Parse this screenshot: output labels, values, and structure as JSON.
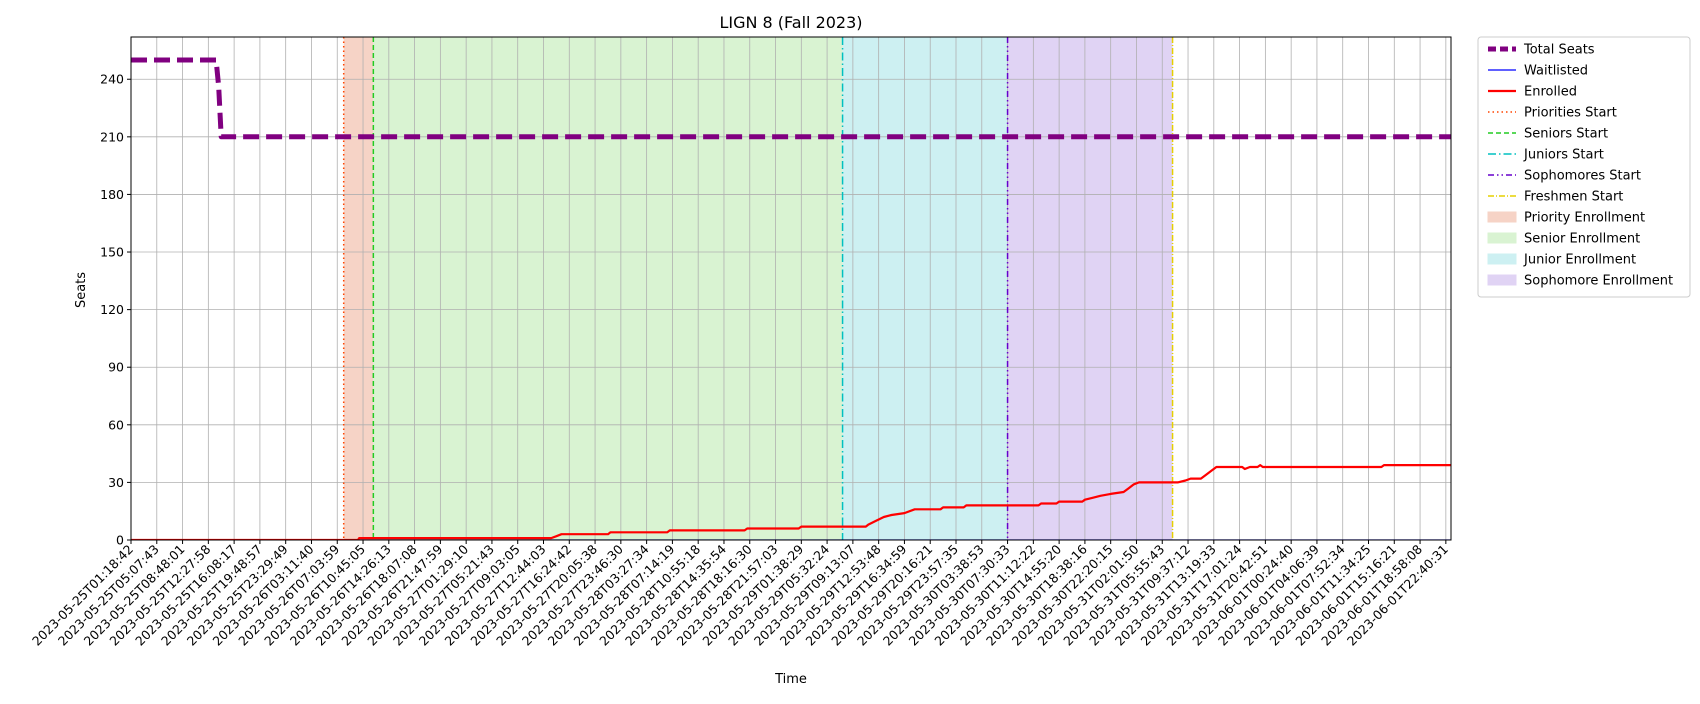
{
  "chart_data": {
    "type": "line",
    "title": "LIGN 8 (Fall 2023)",
    "xlabel": "Time",
    "ylabel": "Seats",
    "ylim": [
      0,
      262
    ],
    "yticks": [
      0,
      30,
      60,
      90,
      120,
      150,
      180,
      210,
      240
    ],
    "grid": true,
    "legend_position": "outside-right",
    "x_tick_labels": [
      "2023-05-25T01:18:42",
      "2023-05-25T05:07:43",
      "2023-05-25T08:48:01",
      "2023-05-25T12:27:58",
      "2023-05-25T16:08:17",
      "2023-05-25T19:48:57",
      "2023-05-25T23:29:49",
      "2023-05-26T03:11:40",
      "2023-05-26T07:03:59",
      "2023-05-26T10:45:05",
      "2023-05-26T14:26:13",
      "2023-05-26T18:07:08",
      "2023-05-26T21:47:59",
      "2023-05-27T01:29:10",
      "2023-05-27T05:21:43",
      "2023-05-27T09:03:05",
      "2023-05-27T12:44:03",
      "2023-05-27T16:24:42",
      "2023-05-27T20:05:38",
      "2023-05-27T23:46:30",
      "2023-05-28T03:27:34",
      "2023-05-28T07:14:19",
      "2023-05-28T10:55:18",
      "2023-05-28T14:35:54",
      "2023-05-28T18:16:30",
      "2023-05-28T21:57:03",
      "2023-05-29T01:38:29",
      "2023-05-29T05:32:24",
      "2023-05-29T09:13:07",
      "2023-05-29T12:53:48",
      "2023-05-29T16:34:59",
      "2023-05-29T20:16:21",
      "2023-05-29T23:57:35",
      "2023-05-30T03:38:53",
      "2023-05-30T07:30:33",
      "2023-05-30T11:12:22",
      "2023-05-30T14:55:20",
      "2023-05-30T18:38:16",
      "2023-05-30T22:20:15",
      "2023-05-31T02:01:50",
      "2023-05-31T05:55:43",
      "2023-05-31T09:37:12",
      "2023-05-31T13:19:33",
      "2023-05-31T17:01:24",
      "2023-05-31T20:42:51",
      "2023-06-01T00:24:40",
      "2023-06-01T04:06:39",
      "2023-06-01T07:52:34",
      "2023-06-01T11:34:25",
      "2023-06-01T15:16:21",
      "2023-06-01T18:58:08",
      "2023-06-01T22:40:31"
    ],
    "x_range": [
      0,
      51.2
    ],
    "series": [
      {
        "name": "Total Seats",
        "color": "#800080",
        "style": "dashed-thick",
        "points": [
          [
            0,
            250
          ],
          [
            3.3,
            250
          ],
          [
            3.4,
            236
          ],
          [
            3.5,
            210
          ],
          [
            51.2,
            210
          ]
        ]
      },
      {
        "name": "Waitlisted",
        "color": "#0000ff",
        "style": "solid",
        "points": [
          [
            0,
            0
          ],
          [
            51.2,
            0
          ]
        ]
      },
      {
        "name": "Enrolled",
        "color": "#ff0000",
        "style": "solid",
        "points": [
          [
            0,
            0
          ],
          [
            8.8,
            0
          ],
          [
            8.85,
            1
          ],
          [
            16.3,
            1
          ],
          [
            16.5,
            2
          ],
          [
            16.7,
            3
          ],
          [
            18.5,
            3
          ],
          [
            18.6,
            4
          ],
          [
            19.5,
            4
          ],
          [
            19.6,
            4
          ],
          [
            20.8,
            4
          ],
          [
            20.9,
            5
          ],
          [
            23.8,
            5
          ],
          [
            23.9,
            6
          ],
          [
            25.9,
            6
          ],
          [
            26.0,
            7
          ],
          [
            28.5,
            7
          ],
          [
            28.6,
            8
          ],
          [
            28.9,
            10
          ],
          [
            29.2,
            12
          ],
          [
            29.5,
            13
          ],
          [
            30.0,
            14
          ],
          [
            30.4,
            16
          ],
          [
            31.4,
            16
          ],
          [
            31.5,
            17
          ],
          [
            32.3,
            17
          ],
          [
            32.4,
            18
          ],
          [
            35.2,
            18
          ],
          [
            35.3,
            19
          ],
          [
            35.9,
            19
          ],
          [
            36.0,
            20
          ],
          [
            36.9,
            20
          ],
          [
            37.0,
            21
          ],
          [
            37.3,
            22
          ],
          [
            37.6,
            23
          ],
          [
            38.0,
            24
          ],
          [
            38.5,
            25
          ],
          [
            38.7,
            27
          ],
          [
            38.9,
            29
          ],
          [
            39.1,
            30
          ],
          [
            40.6,
            30
          ],
          [
            40.9,
            31
          ],
          [
            41.1,
            32
          ],
          [
            41.5,
            32
          ],
          [
            41.7,
            34
          ],
          [
            41.9,
            36
          ],
          [
            42.1,
            38
          ],
          [
            43.1,
            38
          ],
          [
            43.2,
            37
          ],
          [
            43.4,
            38
          ],
          [
            43.7,
            38
          ],
          [
            43.8,
            39
          ],
          [
            43.9,
            38
          ],
          [
            48.5,
            38
          ],
          [
            48.6,
            39
          ],
          [
            51.2,
            39
          ]
        ]
      }
    ],
    "vertical_lines": [
      {
        "name": "Priorities Start",
        "x": 8.25,
        "color": "#ff4500",
        "style": "dotted"
      },
      {
        "name": "Seniors Start",
        "x": 9.4,
        "color": "#22cc22",
        "style": "dashed"
      },
      {
        "name": "Juniors Start",
        "x": 27.6,
        "color": "#00c0c0",
        "style": "dashdot"
      },
      {
        "name": "Sophomores Start",
        "x": 34.0,
        "color": "#6600cc",
        "style": "dashdotdot"
      },
      {
        "name": "Freshmen Start",
        "x": 40.4,
        "color": "#e6d000",
        "style": "dashdot-thin"
      }
    ],
    "regions": [
      {
        "name": "Priority Enrollment",
        "x0": 8.25,
        "x1": 9.4,
        "color": "#f6d3c6"
      },
      {
        "name": "Senior Enrollment",
        "x0": 9.4,
        "x1": 27.6,
        "color": "#d9f3d2"
      },
      {
        "name": "Junior Enrollment",
        "x0": 27.6,
        "x1": 34.0,
        "color": "#cdf0f2"
      },
      {
        "name": "Sophomore Enrollment",
        "x0": 34.0,
        "x1": 40.4,
        "color": "#e0d3f4"
      }
    ],
    "legend": [
      "Total Seats",
      "Waitlisted",
      "Enrolled",
      "Priorities Start",
      "Seniors Start",
      "Juniors Start",
      "Sophomores Start",
      "Freshmen Start",
      "Priority Enrollment",
      "Senior Enrollment",
      "Junior Enrollment",
      "Sophomore Enrollment"
    ]
  }
}
